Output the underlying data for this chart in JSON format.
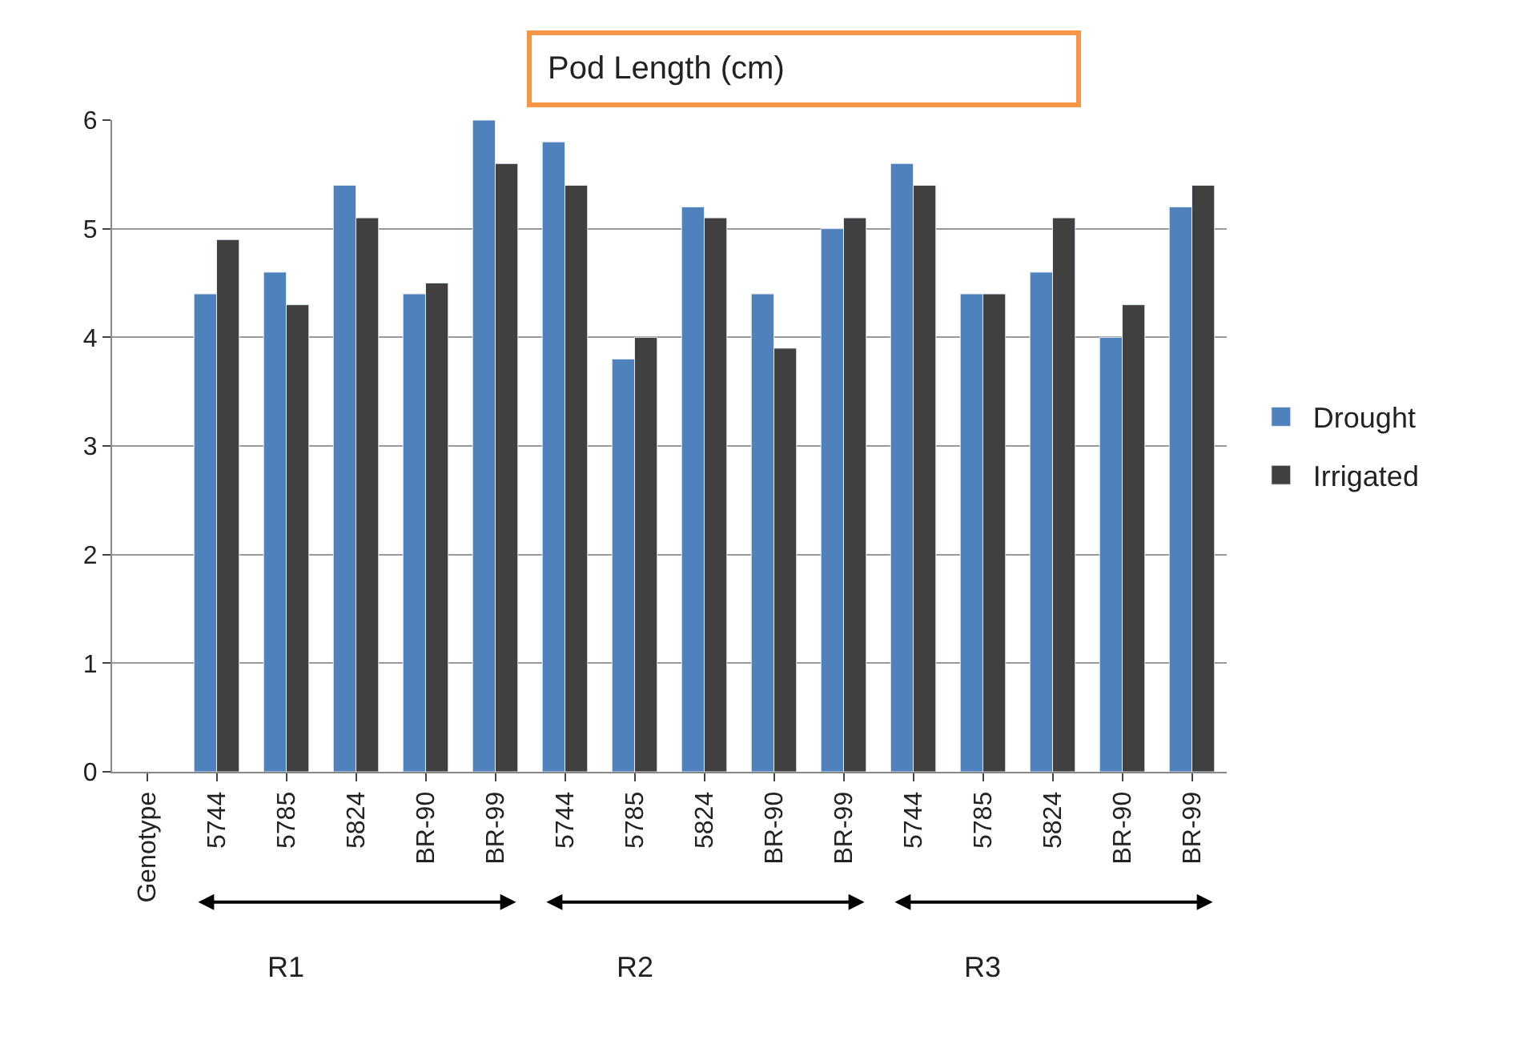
{
  "chart_data": {
    "type": "bar",
    "title": "Pod Length (cm)",
    "categories": [
      "Genotype",
      "5744",
      "5785",
      "5824",
      "BR-90",
      "BR-99",
      "5744",
      "5785",
      "5824",
      "BR-90",
      "BR-99",
      "5744",
      "5785",
      "5824",
      "BR-90",
      "BR-99"
    ],
    "series": [
      {
        "name": "Drought",
        "color": "#4f81bd",
        "values": [
          null,
          4.4,
          4.6,
          5.4,
          4.4,
          6.0,
          5.8,
          3.8,
          5.2,
          4.4,
          5.0,
          5.6,
          4.4,
          4.6,
          4.0,
          5.2
        ]
      },
      {
        "name": "Irrigated",
        "color": "#404040",
        "values": [
          null,
          4.9,
          4.3,
          5.1,
          4.5,
          5.6,
          5.4,
          4.0,
          5.1,
          3.9,
          5.1,
          5.4,
          4.4,
          5.1,
          4.3,
          5.4
        ]
      }
    ],
    "ylim": [
      0,
      6
    ],
    "yticks": [
      0,
      1,
      2,
      3,
      4,
      5,
      6
    ],
    "grid": "y",
    "legend": "right",
    "annotations": [
      "R1",
      "R2",
      "R3"
    ]
  }
}
